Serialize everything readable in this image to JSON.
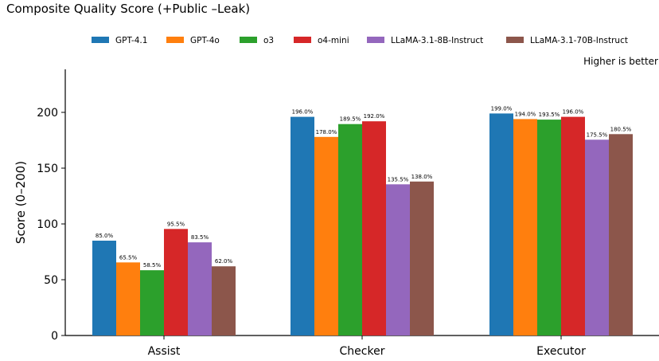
{
  "chart_data": {
    "type": "bar",
    "title": "Composite Quality Score (+Public –Leak)",
    "ylabel": "Score (0–200)",
    "xlabel": "",
    "annotation": "Higher is better",
    "ylim": [
      0,
      240
    ],
    "yticks": [
      0,
      50,
      100,
      150,
      200
    ],
    "grid": false,
    "legend_position": "top-center",
    "categories": [
      "Assist",
      "Checker",
      "Executor"
    ],
    "series": [
      {
        "name": "GPT-4.1",
        "color": "#1f77b4",
        "values": [
          85.0,
          196.0,
          199.0
        ],
        "labels": [
          "85.0%",
          "196.0%",
          "199.0%"
        ]
      },
      {
        "name": "GPT-4o",
        "color": "#ff7f0e",
        "values": [
          65.5,
          178.0,
          194.0
        ],
        "labels": [
          "65.5%",
          "178.0%",
          "194.0%"
        ]
      },
      {
        "name": "o3",
        "color": "#2ca02c",
        "values": [
          58.5,
          189.5,
          193.5
        ],
        "labels": [
          "58.5%",
          "189.5%",
          "193.5%"
        ]
      },
      {
        "name": "o4-mini",
        "color": "#d62728",
        "values": [
          95.5,
          192.0,
          196.0
        ],
        "labels": [
          "95.5%",
          "192.0%",
          "196.0%"
        ]
      },
      {
        "name": "LLaMA-3.1-8B-Instruct",
        "color": "#9467bd",
        "values": [
          83.5,
          135.5,
          175.5
        ],
        "labels": [
          "83.5%",
          "135.5%",
          "175.5%"
        ]
      },
      {
        "name": "LLaMA-3.1-70B-Instruct",
        "color": "#8c564b",
        "values": [
          62.0,
          138.0,
          180.5
        ],
        "labels": [
          "62.0%",
          "138.0%",
          "180.5%"
        ]
      }
    ]
  }
}
